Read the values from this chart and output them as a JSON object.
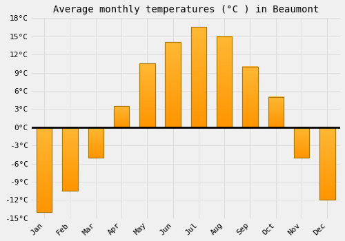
{
  "title": "Average monthly temperatures (°C ) in Beaumont",
  "months": [
    "Jan",
    "Feb",
    "Mar",
    "Apr",
    "May",
    "Jun",
    "Jul",
    "Aug",
    "Sep",
    "Oct",
    "Nov",
    "Dec"
  ],
  "values": [
    -14,
    -10.5,
    -5,
    3.5,
    10.5,
    14,
    16.5,
    15,
    10,
    5,
    -5,
    -12
  ],
  "bar_color_top": "#FFB833",
  "bar_color_bottom": "#FF9500",
  "bar_edge_color": "#AA7700",
  "ylim": [
    -15,
    18
  ],
  "yticks": [
    -15,
    -12,
    -9,
    -6,
    -3,
    0,
    3,
    6,
    9,
    12,
    15,
    18
  ],
  "ytick_labels": [
    "-15°C",
    "-12°C",
    "-9°C",
    "-6°C",
    "-3°C",
    "0°C",
    "3°C",
    "6°C",
    "9°C",
    "12°C",
    "15°C",
    "18°C"
  ],
  "background_color": "#f0f0f0",
  "grid_color": "#dddddd",
  "zero_line_color": "#000000",
  "title_fontsize": 10,
  "tick_fontsize": 8,
  "bar_width": 0.6
}
